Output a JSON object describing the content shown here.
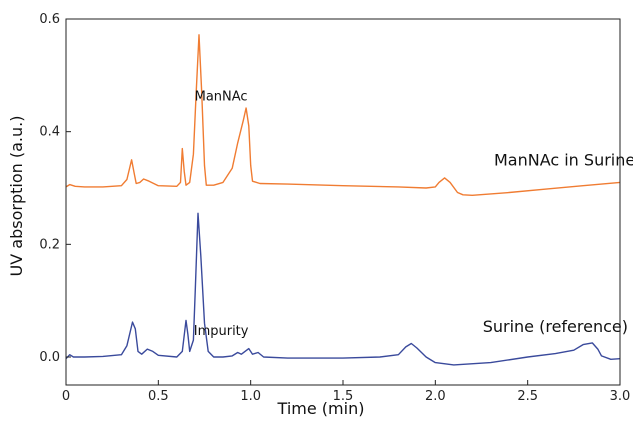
{
  "chart_data": {
    "type": "line",
    "title": "",
    "xlabel": "Time (min)",
    "ylabel": "UV absorption (a.u.)",
    "xlim": [
      0,
      3.0
    ],
    "ylim": [
      -0.02,
      0.6
    ],
    "x_ticks": [
      0,
      0.5,
      1.0,
      1.5,
      2.0,
      2.5,
      3.0
    ],
    "x_tick_labels": [
      "0",
      "0.5",
      "1.0",
      "1.5",
      "2.0",
      "2.5",
      "3.0"
    ],
    "y_ticks": [
      0.0,
      0.2,
      0.4,
      0.6
    ],
    "y_tick_labels": [
      "0.0",
      "0.2",
      "0.4",
      "0.6"
    ],
    "grid": false,
    "legend": "none",
    "series": [
      {
        "name": "ManNAc in Surine",
        "color": "#f07c32",
        "points": [
          [
            0.0,
            0.302
          ],
          [
            0.02,
            0.306
          ],
          [
            0.05,
            0.303
          ],
          [
            0.1,
            0.302
          ],
          [
            0.2,
            0.302
          ],
          [
            0.3,
            0.304
          ],
          [
            0.33,
            0.315
          ],
          [
            0.355,
            0.35
          ],
          [
            0.37,
            0.325
          ],
          [
            0.38,
            0.308
          ],
          [
            0.4,
            0.31
          ],
          [
            0.42,
            0.316
          ],
          [
            0.45,
            0.312
          ],
          [
            0.5,
            0.304
          ],
          [
            0.6,
            0.303
          ],
          [
            0.62,
            0.31
          ],
          [
            0.63,
            0.37
          ],
          [
            0.64,
            0.33
          ],
          [
            0.65,
            0.305
          ],
          [
            0.67,
            0.31
          ],
          [
            0.69,
            0.36
          ],
          [
            0.705,
            0.47
          ],
          [
            0.72,
            0.572
          ],
          [
            0.735,
            0.47
          ],
          [
            0.75,
            0.34
          ],
          [
            0.76,
            0.305
          ],
          [
            0.8,
            0.305
          ],
          [
            0.85,
            0.31
          ],
          [
            0.9,
            0.335
          ],
          [
            0.93,
            0.38
          ],
          [
            0.96,
            0.42
          ],
          [
            0.975,
            0.442
          ],
          [
            0.99,
            0.41
          ],
          [
            1.0,
            0.34
          ],
          [
            1.01,
            0.312
          ],
          [
            1.05,
            0.308
          ],
          [
            1.2,
            0.307
          ],
          [
            1.5,
            0.304
          ],
          [
            1.8,
            0.302
          ],
          [
            1.95,
            0.3
          ],
          [
            2.0,
            0.302
          ],
          [
            2.02,
            0.31
          ],
          [
            2.05,
            0.318
          ],
          [
            2.08,
            0.31
          ],
          [
            2.12,
            0.292
          ],
          [
            2.15,
            0.288
          ],
          [
            2.2,
            0.287
          ],
          [
            2.4,
            0.292
          ],
          [
            2.6,
            0.298
          ],
          [
            2.8,
            0.304
          ],
          [
            3.0,
            0.31
          ]
        ]
      },
      {
        "name": "Surine (reference)",
        "color": "#3a4a9c",
        "points": [
          [
            0.0,
            -0.003
          ],
          [
            0.02,
            0.004
          ],
          [
            0.04,
            0.0
          ],
          [
            0.1,
            0.0
          ],
          [
            0.2,
            0.001
          ],
          [
            0.3,
            0.004
          ],
          [
            0.33,
            0.02
          ],
          [
            0.36,
            0.062
          ],
          [
            0.375,
            0.05
          ],
          [
            0.39,
            0.01
          ],
          [
            0.41,
            0.005
          ],
          [
            0.44,
            0.014
          ],
          [
            0.47,
            0.01
          ],
          [
            0.5,
            0.003
          ],
          [
            0.6,
            0.0
          ],
          [
            0.63,
            0.01
          ],
          [
            0.65,
            0.065
          ],
          [
            0.66,
            0.04
          ],
          [
            0.67,
            0.01
          ],
          [
            0.69,
            0.03
          ],
          [
            0.7,
            0.12
          ],
          [
            0.715,
            0.255
          ],
          [
            0.73,
            0.18
          ],
          [
            0.75,
            0.06
          ],
          [
            0.77,
            0.01
          ],
          [
            0.8,
            0.0
          ],
          [
            0.85,
            0.0
          ],
          [
            0.9,
            0.002
          ],
          [
            0.93,
            0.008
          ],
          [
            0.95,
            0.005
          ],
          [
            0.99,
            0.015
          ],
          [
            1.01,
            0.005
          ],
          [
            1.04,
            0.008
          ],
          [
            1.07,
            0.0
          ],
          [
            1.2,
            -0.002
          ],
          [
            1.5,
            -0.002
          ],
          [
            1.7,
            0.0
          ],
          [
            1.8,
            0.004
          ],
          [
            1.84,
            0.018
          ],
          [
            1.87,
            0.024
          ],
          [
            1.9,
            0.016
          ],
          [
            1.95,
            0.0
          ],
          [
            2.0,
            -0.01
          ],
          [
            2.1,
            -0.014
          ],
          [
            2.3,
            -0.01
          ],
          [
            2.5,
            0.0
          ],
          [
            2.65,
            0.006
          ],
          [
            2.75,
            0.012
          ],
          [
            2.8,
            0.022
          ],
          [
            2.85,
            0.025
          ],
          [
            2.88,
            0.014
          ],
          [
            2.9,
            0.002
          ],
          [
            2.95,
            -0.004
          ],
          [
            3.0,
            -0.003
          ]
        ]
      }
    ],
    "annotations": [
      {
        "text": "ManNAc",
        "x": 0.84,
        "y": 0.455
      },
      {
        "text": "ManNAc in Surine",
        "x": 2.7,
        "y": 0.34
      },
      {
        "text": "Impurity",
        "x": 0.84,
        "y": 0.039
      },
      {
        "text": "Surine (reference)",
        "x": 2.65,
        "y": 0.044
      }
    ]
  }
}
